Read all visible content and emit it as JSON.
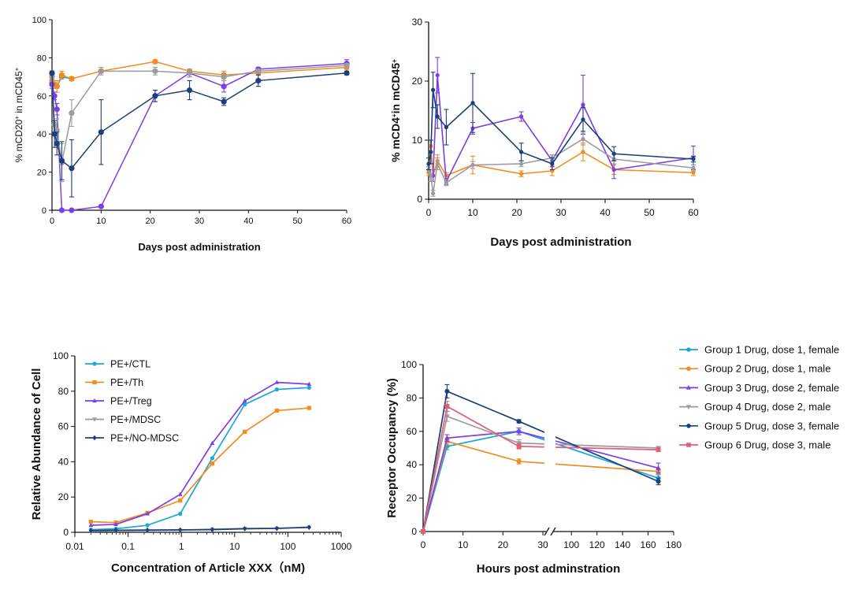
{
  "chart_data": [
    {
      "id": "mcd20",
      "type": "line",
      "title": "",
      "xlabel": "Days post administration",
      "ylabel_parts": [
        "% mCD20",
        "+",
        " in mCD45",
        "+"
      ],
      "xlim": [
        0,
        60
      ],
      "ylim": [
        0,
        100
      ],
      "xticks": [
        0,
        10,
        20,
        30,
        40,
        50,
        60
      ],
      "yticks": [
        0,
        20,
        40,
        60,
        80,
        100
      ],
      "series": [
        {
          "name": "Group 1 Drug, dose 1, female",
          "color": "#1aa7dd",
          "marker": "circle",
          "x": [
            0,
            0.5,
            1,
            2,
            4
          ],
          "y": [
            67,
            66,
            65,
            70,
            69
          ],
          "err": [
            0,
            0,
            0,
            0,
            0
          ]
        },
        {
          "name": "Group 2 Drug, dose 1, male",
          "color": "#f28c1e",
          "marker": "circle",
          "x": [
            0,
            0.5,
            1,
            2,
            4,
            10,
            21,
            28,
            35,
            42,
            60
          ],
          "y": [
            68,
            66,
            65,
            71,
            69,
            73,
            78,
            73,
            71,
            72,
            75
          ],
          "err": [
            2,
            2,
            3,
            2,
            1,
            1,
            1,
            1,
            2,
            1,
            1
          ]
        },
        {
          "name": "Group 3 Drug, dose 2, female",
          "color": "#7b3fe4",
          "marker": "circle",
          "x": [
            0,
            0.5,
            1,
            2,
            4,
            10,
            21,
            28,
            35,
            42,
            60
          ],
          "y": [
            66,
            60,
            53,
            0,
            0,
            2,
            60,
            72,
            65,
            74,
            77
          ],
          "err": [
            2,
            2,
            3,
            0,
            0,
            0,
            3,
            2,
            3,
            1,
            2
          ]
        },
        {
          "name": "Group 4 Drug, dose 2, male",
          "color": "#9b9b9b",
          "marker": "circle",
          "x": [
            0,
            0.5,
            1,
            2,
            4,
            10,
            21,
            28,
            35,
            42,
            60
          ],
          "y": [
            70,
            45,
            42,
            25,
            51,
            73,
            73,
            72,
            70,
            73,
            76
          ],
          "err": [
            2,
            5,
            6,
            10,
            7,
            2,
            2,
            2,
            2,
            1,
            1
          ]
        },
        {
          "name": "Group 5 Drug, dose 3, female",
          "color": "#1c3f7a",
          "marker": "circle",
          "x": [
            0,
            0.5,
            1,
            2,
            4,
            10,
            21,
            28,
            35,
            42,
            60
          ],
          "y": [
            72,
            40,
            35,
            26,
            22,
            41,
            60,
            63,
            57,
            68,
            72
          ],
          "err": [
            1,
            7,
            6,
            10,
            15,
            17,
            3,
            5,
            2,
            3,
            1
          ]
        }
      ]
    },
    {
      "id": "mcd4",
      "type": "line",
      "title": "",
      "xlabel": "Days post administration",
      "ylabel_parts": [
        "% mCD4",
        "+",
        "in mCD45",
        "+"
      ],
      "xlim": [
        0,
        60
      ],
      "ylim": [
        0,
        30
      ],
      "xticks": [
        0,
        10,
        20,
        30,
        40,
        50,
        60
      ],
      "yticks": [
        0,
        10,
        20,
        30
      ],
      "series": [
        {
          "name": "Group 2 Drug, dose 1, male",
          "color": "#f28c1e",
          "marker": "circle",
          "x": [
            0,
            0.5,
            1,
            2,
            4,
            10,
            21,
            28,
            35,
            42,
            60
          ],
          "y": [
            4.5,
            9,
            4,
            6.5,
            4,
            5.8,
            4.3,
            4.8,
            8,
            5,
            4.5
          ],
          "err": [
            0.5,
            1,
            1,
            1,
            0.5,
            1.5,
            0.5,
            0.8,
            1.5,
            0.8,
            0.5
          ]
        },
        {
          "name": "Group 3 Drug, dose 2, female",
          "color": "#7b3fe4",
          "marker": "circle",
          "x": [
            0,
            0.5,
            1,
            2,
            4,
            10,
            21,
            28,
            35,
            42,
            60
          ],
          "y": [
            6,
            4,
            4,
            21,
            3,
            12,
            14,
            6.5,
            16,
            5,
            7
          ],
          "err": [
            1,
            1,
            1,
            3,
            0.5,
            1,
            0.8,
            1,
            5,
            1.5,
            2
          ]
        },
        {
          "name": "Group 4 Drug, dose 2, male",
          "color": "#9b9b9b",
          "marker": "circle",
          "x": [
            0,
            0.5,
            1,
            2,
            4,
            10,
            21,
            28,
            35,
            42,
            60
          ],
          "y": [
            5,
            4,
            1,
            6,
            2.8,
            5.8,
            6,
            7,
            10.2,
            6.8,
            5.3
          ],
          "err": [
            0.5,
            1,
            0.5,
            1,
            0.5,
            0.6,
            0.5,
            0.5,
            1,
            0.8,
            0.5
          ]
        },
        {
          "name": "Group 5 Drug, dose 3, female",
          "color": "#1c3f7a",
          "marker": "circle",
          "x": [
            0,
            0.5,
            1,
            2,
            4,
            10,
            21,
            28,
            35,
            42,
            60
          ],
          "y": [
            6,
            8,
            18.5,
            14,
            12.2,
            16.3,
            8,
            6,
            13.5,
            7.7,
            6.8
          ],
          "err": [
            1,
            2,
            3,
            2,
            3,
            5,
            1.5,
            1,
            2,
            1.2,
            0.5
          ]
        }
      ]
    },
    {
      "id": "abundance",
      "type": "line",
      "title": "",
      "xscale": "log",
      "xlabel": "Concentration of Article XXX（nM)",
      "ylabel": "Relative Abundance of Cell",
      "xlim": [
        0.01,
        1000
      ],
      "ylim": [
        0,
        100
      ],
      "xticks": [
        0.01,
        0.1,
        1,
        10,
        100,
        1000
      ],
      "xtick_labels": [
        "0.01",
        "0.1",
        "1",
        "10",
        "100",
        "1000"
      ],
      "yticks": [
        0,
        20,
        40,
        60,
        80,
        100
      ],
      "legend_position": "top-left",
      "series": [
        {
          "name": "PE+/CTL",
          "color": "#1aa7dd",
          "marker": "circle",
          "x": [
            0.02,
            0.059,
            0.23,
            0.95,
            3.8,
            15.5,
            62,
            250
          ],
          "y": [
            1.5,
            2,
            4,
            10.5,
            42,
            72.5,
            81,
            82
          ]
        },
        {
          "name": "PE+/Th",
          "color": "#f28c1e",
          "marker": "square",
          "x": [
            0.02,
            0.059,
            0.23,
            0.95,
            3.8,
            15.5,
            62,
            250
          ],
          "y": [
            6,
            5.5,
            11,
            18,
            39,
            57,
            69,
            70.5
          ]
        },
        {
          "name": "PE+/Treg",
          "color": "#7b3fe4",
          "marker": "triangle",
          "x": [
            0.02,
            0.059,
            0.23,
            0.95,
            3.8,
            15.5,
            62,
            250
          ],
          "y": [
            4,
            4.5,
            10.5,
            21.5,
            50.5,
            74.5,
            85,
            84
          ]
        },
        {
          "name": "PE+/MDSC",
          "color": "#9b9b9b",
          "marker": "triangle-down",
          "x": [
            0.02,
            0.059,
            0.23,
            0.95,
            3.8,
            15.5,
            62,
            250
          ],
          "y": [
            0.5,
            0.8,
            1,
            1.2,
            1.8,
            2.2,
            2.3,
            3
          ]
        },
        {
          "name": "PE+/NO-MDSC",
          "color": "#1c3f7a",
          "marker": "diamond",
          "x": [
            0.02,
            0.059,
            0.23,
            0.95,
            3.8,
            15.5,
            62,
            250
          ],
          "y": [
            1,
            1.2,
            1.3,
            1.4,
            1.5,
            2,
            2.2,
            2.8
          ]
        }
      ]
    },
    {
      "id": "occupancy",
      "type": "line",
      "title": "",
      "xlabel": "Hours post adminstration",
      "ylabel": "Receptor Occupancy (%)",
      "xaxis_break": {
        "from": 30,
        "to": 90
      },
      "xticks": [
        0,
        10,
        20,
        30,
        100,
        120,
        140,
        160,
        180
      ],
      "ylim": [
        0,
        100
      ],
      "yticks": [
        0,
        20,
        40,
        60,
        80,
        100
      ],
      "legend_position": "outside-top-right",
      "series": [
        {
          "name": "Group 1 Drug, dose 1, female",
          "color": "#1aa7dd",
          "marker": "circle",
          "x": [
            0,
            6,
            24,
            168
          ],
          "y": [
            0,
            51,
            60,
            32
          ],
          "err": [
            0,
            2,
            2,
            2
          ]
        },
        {
          "name": "Group 2 Drug, dose 1, male",
          "color": "#f28c1e",
          "marker": "circle",
          "x": [
            0,
            6,
            24,
            168
          ],
          "y": [
            0,
            54,
            42,
            36
          ],
          "err": [
            0,
            2,
            1.5,
            1.5
          ]
        },
        {
          "name": "Group 3 Drug, dose 2, female",
          "color": "#7b3fe4",
          "marker": "triangle",
          "x": [
            0,
            6,
            24,
            168
          ],
          "y": [
            0,
            56,
            60,
            38
          ],
          "err": [
            0,
            2,
            2,
            3
          ]
        },
        {
          "name": "Group 4 Drug, dose 2, male",
          "color": "#9b9b9b",
          "marker": "triangle-down",
          "x": [
            0,
            6,
            24,
            168
          ],
          "y": [
            0,
            69,
            53,
            50
          ],
          "err": [
            0,
            3,
            2,
            1
          ]
        },
        {
          "name": "Group 5 Drug, dose 3, female",
          "color": "#1c3f7a",
          "marker": "circle",
          "x": [
            0,
            6,
            24,
            168
          ],
          "y": [
            0,
            84,
            66,
            30
          ],
          "err": [
            0,
            4,
            1,
            2
          ]
        },
        {
          "name": "Group 6 Drug, dose 3, male",
          "color": "#e0607a",
          "marker": "square",
          "x": [
            0,
            6,
            24,
            168
          ],
          "y": [
            0,
            75,
            51,
            49
          ],
          "err": [
            0,
            3,
            1.5,
            1
          ]
        }
      ]
    }
  ]
}
